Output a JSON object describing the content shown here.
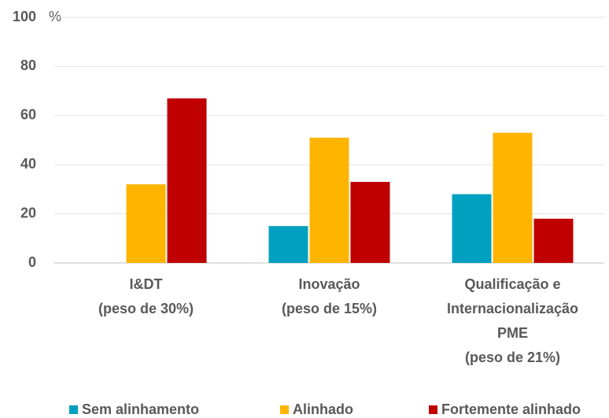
{
  "chart_data": {
    "type": "bar",
    "categories": [
      "I&DT\n(peso de 30%)",
      "Inovação\n(peso de 15%)",
      "Qualificação e\nInternacionalização\nPME\n(peso de 21%)"
    ],
    "series": [
      {
        "name": "Sem alinhamento",
        "color": "#00a0c0",
        "values": [
          0,
          15,
          28
        ]
      },
      {
        "name": "Alinhado",
        "color": "#ffb400",
        "values": [
          32,
          51,
          53
        ]
      },
      {
        "name": "Fortemente alinhado",
        "color": "#c00000",
        "values": [
          67,
          33,
          18
        ]
      }
    ],
    "ylabel": "%",
    "ylim": [
      0,
      100
    ],
    "yticks": [
      0,
      20,
      40,
      60,
      80,
      100
    ],
    "grid": true,
    "legend": "bottom"
  }
}
